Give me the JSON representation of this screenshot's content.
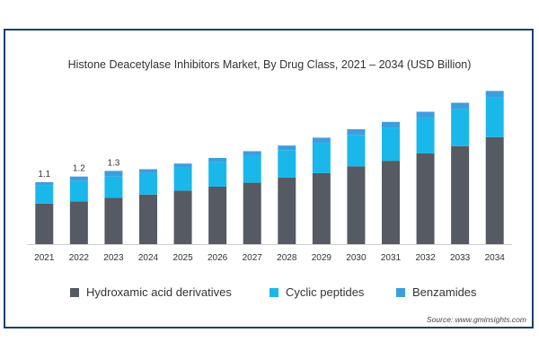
{
  "chart_data": {
    "type": "bar",
    "stacked": true,
    "title": "Histone Deacetylase Inhibitors Market, By Drug Class, 2021 – 2034 (USD Billion)",
    "categories": [
      "2021",
      "2022",
      "2023",
      "2024",
      "2025",
      "2026",
      "2027",
      "2028",
      "2029",
      "2030",
      "2031",
      "2032",
      "2033",
      "2034"
    ],
    "series": [
      {
        "name": "Hydroxamic acid derivatives",
        "color": "#555a63",
        "values": [
          0.72,
          0.76,
          0.82,
          0.88,
          0.95,
          1.02,
          1.09,
          1.18,
          1.26,
          1.38,
          1.48,
          1.61,
          1.74,
          1.9
        ]
      },
      {
        "name": "Cyclic peptides",
        "color": "#1ab8ea",
        "values": [
          0.33,
          0.36,
          0.38,
          0.38,
          0.42,
          0.44,
          0.48,
          0.49,
          0.54,
          0.56,
          0.59,
          0.63,
          0.66,
          0.7
        ]
      },
      {
        "name": "Benzamides",
        "color": "#3d9ede",
        "values": [
          0.05,
          0.08,
          0.1,
          0.07,
          0.06,
          0.07,
          0.08,
          0.08,
          0.09,
          0.1,
          0.1,
          0.11,
          0.11,
          0.12
        ]
      }
    ],
    "data_labels": [
      {
        "category": "2021",
        "text": "1.1"
      },
      {
        "category": "2022",
        "text": "1.2"
      },
      {
        "category": "2023",
        "text": "1.3"
      }
    ],
    "ylim": [
      0,
      2.9
    ],
    "grid": false,
    "legend_position": "bottom"
  },
  "source": "Source: www.gminsights.com"
}
